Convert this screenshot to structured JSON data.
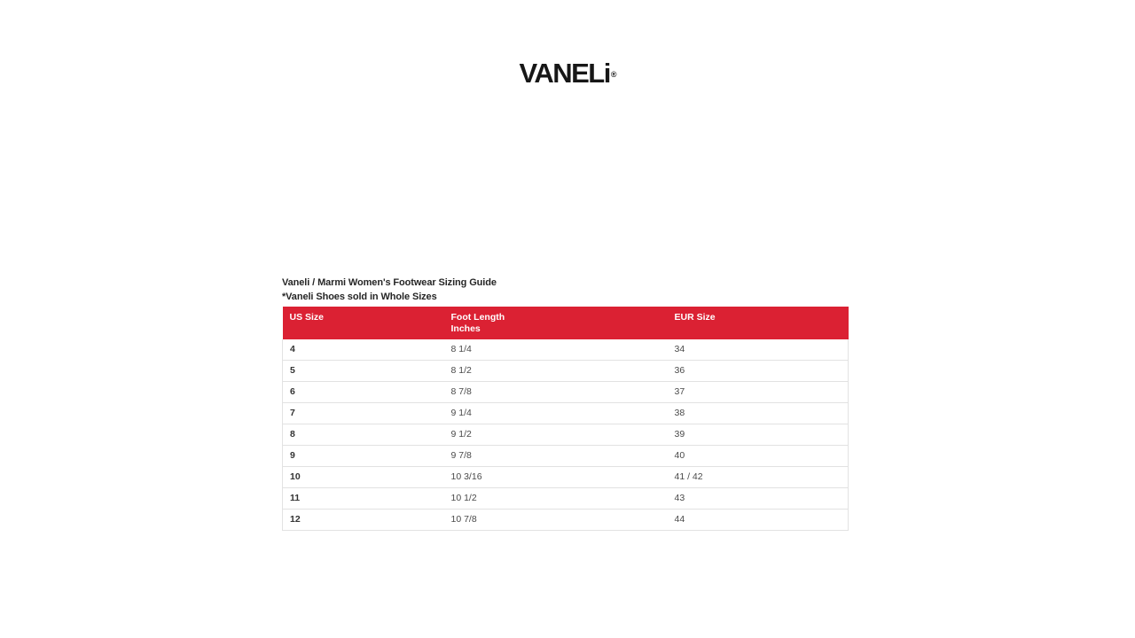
{
  "logo": {
    "text": "VANELi",
    "registered_mark": "®"
  },
  "sizing_guide": {
    "title": "Vaneli / Marmi Women's Footwear Sizing Guide",
    "subtitle": "*Vaneli Shoes sold in Whole Sizes",
    "table": {
      "columns": [
        {
          "label": "US Size"
        },
        {
          "label_line1": "Foot Length",
          "label_line2": "Inches"
        },
        {
          "label": "EUR Size"
        }
      ],
      "rows": [
        {
          "us": "4",
          "inches": "8 1/4",
          "eur": "34"
        },
        {
          "us": "5",
          "inches": "8 1/2",
          "eur": "36"
        },
        {
          "us": "6",
          "inches": "8 7/8",
          "eur": "37"
        },
        {
          "us": "7",
          "inches": "9 1/4",
          "eur": "38"
        },
        {
          "us": "8",
          "inches": "9 1/2",
          "eur": "39"
        },
        {
          "us": "9",
          "inches": "9 7/8",
          "eur": "40"
        },
        {
          "us": "10",
          "inches": "10 3/16",
          "eur": "41 / 42"
        },
        {
          "us": "11",
          "inches": "10 1/2",
          "eur": "43"
        },
        {
          "us": "12",
          "inches": "10 7/8",
          "eur": "44"
        }
      ]
    }
  },
  "colors": {
    "header_bg": "#DB2133",
    "header_text": "#FFFFFF",
    "row_border": "#E2E2E2",
    "text_primary": "#333333",
    "text_secondary": "#4A4A4A"
  }
}
